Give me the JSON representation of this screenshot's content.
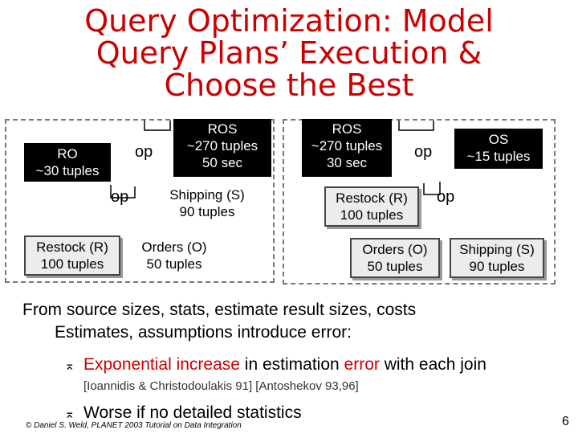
{
  "title": {
    "line1": "Query Optimization:  Model",
    "line2": "Query Plans’ Execution &",
    "line3": "Choose the Best"
  },
  "left_plan": {
    "ro": {
      "name": "RO",
      "size": "~30 tuples"
    },
    "op_top": "op",
    "ros": {
      "name": "ROS",
      "size": "~270 tuples",
      "cost": "50 sec"
    },
    "op_mid": "op",
    "shipping": {
      "name": "Shipping (S)",
      "size": "90 tuples"
    },
    "restock": {
      "name": "Restock (R)",
      "size": "100 tuples"
    },
    "orders": {
      "name": "Orders (O)",
      "size": "50 tuples"
    }
  },
  "right_plan": {
    "ros": {
      "name": "ROS",
      "size": "~270 tuples",
      "cost": "30 sec"
    },
    "op_top": "op",
    "os": {
      "name": "OS",
      "size": "~15 tuples"
    },
    "restock": {
      "name": "Restock (R)",
      "size": "100 tuples"
    },
    "op_mid": "op",
    "orders": {
      "name": "Orders (O)",
      "size": "50 tuples"
    },
    "shipping": {
      "name": "Shipping (S)",
      "size": "90 tuples"
    }
  },
  "text": {
    "line1": "From source sizes, stats, estimate result sizes, costs",
    "line2": "Estimates, assumptions introduce error:",
    "bullet1_a": "Exponential increase",
    "bullet1_b": " in estimation ",
    "bullet1_c": "error",
    "bullet1_d": " with each join",
    "citation": "[Ioannidis & Christodoulakis 91] [Antoshekov 93,96]",
    "bullet2": "Worse if no detailed statistics",
    "bullet_symbol": "⌅"
  },
  "footer": {
    "credit": "© Daniel S. Weld, PLANET 2003 Tutorial on Data Integration",
    "page": "6"
  }
}
